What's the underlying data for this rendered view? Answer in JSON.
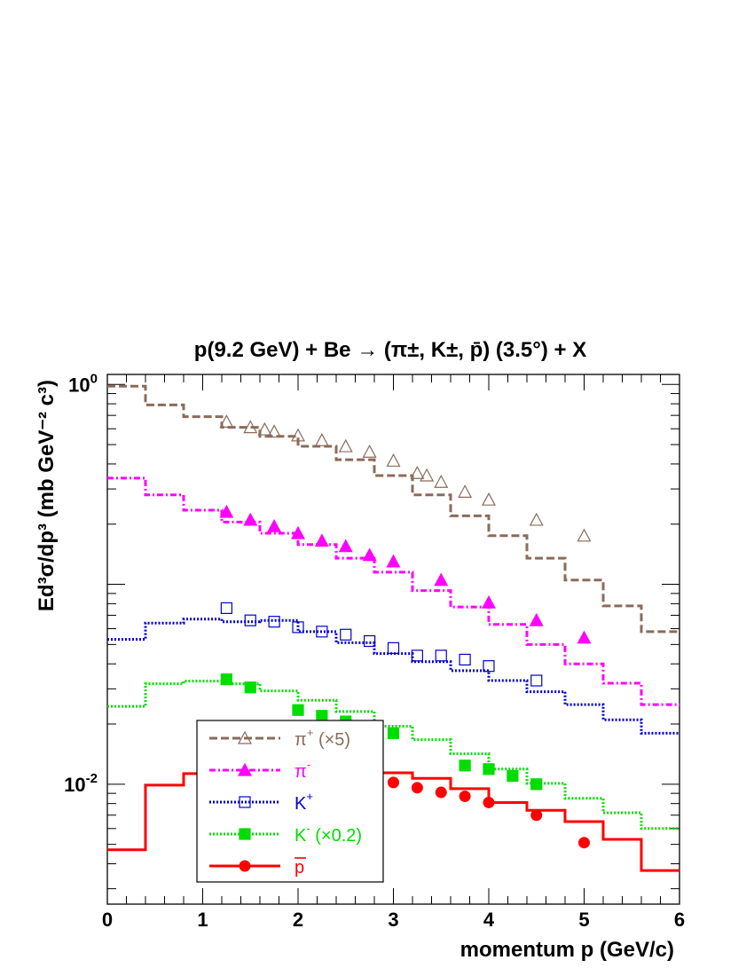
{
  "chart_data": {
    "type": "scatter",
    "title": "p(9.2 GeV) + Be  → (π±, K±, p̄) (3.5°) + X",
    "xlabel": "momentum p (GeV/c)",
    "ylabel": "Ed³σ/dp³ (mb GeV⁻² c³)",
    "xlim": [
      0,
      6
    ],
    "ylim_log10": [
      -2.6,
      0.05
    ],
    "y_scale": "log",
    "x_ticks": [
      "0",
      "1",
      "2",
      "3",
      "4",
      "5",
      "6"
    ],
    "y_tick_labels": [
      {
        "value": 1,
        "base": "10",
        "exp": "0"
      },
      {
        "value": 0.01,
        "base": "10",
        "exp": "-2"
      }
    ],
    "legend_position": "bottom-left",
    "series": [
      {
        "name": "π+ (×5)",
        "legend_base": "π",
        "legend_sup": "+",
        "legend_suffix": " (×5)",
        "color": "#8B6B5A",
        "marker": "open-triangle",
        "line": "dashed",
        "hist_edges": [
          0,
          0.4,
          0.8,
          1.2,
          1.6,
          2.0,
          2.4,
          2.8,
          3.2,
          3.6,
          4.0,
          4.4,
          4.8,
          5.2,
          5.6,
          6.0
        ],
        "hist_values": [
          0.98,
          0.79,
          0.69,
          0.61,
          0.55,
          0.49,
          0.42,
          0.35,
          0.28,
          0.22,
          0.175,
          0.135,
          0.105,
          0.078,
          0.058
        ],
        "points_x": [
          1.25,
          1.5,
          1.65,
          1.75,
          2.0,
          2.25,
          2.5,
          2.75,
          3.0,
          3.25,
          3.35,
          3.5,
          3.75,
          4.0,
          4.5,
          5.0
        ],
        "points_y": [
          0.65,
          0.61,
          0.595,
          0.58,
          0.555,
          0.525,
          0.49,
          0.46,
          0.415,
          0.36,
          0.35,
          0.325,
          0.29,
          0.265,
          0.21,
          0.175
        ]
      },
      {
        "name": "π-",
        "legend_base": "π",
        "legend_sup": "-",
        "legend_suffix": "",
        "color": "#FF00FF",
        "marker": "filled-triangle",
        "line": "dashdot",
        "hist_edges": [
          0,
          0.4,
          0.8,
          1.2,
          1.6,
          2.0,
          2.4,
          2.8,
          3.2,
          3.6,
          4.0,
          4.4,
          4.8,
          5.2,
          5.6,
          6.0
        ],
        "hist_values": [
          0.34,
          0.28,
          0.235,
          0.205,
          0.18,
          0.158,
          0.135,
          0.115,
          0.093,
          0.077,
          0.063,
          0.05,
          0.04,
          0.032,
          0.025
        ],
        "points_x": [
          1.25,
          1.5,
          1.75,
          2.0,
          2.25,
          2.5,
          2.75,
          3.0,
          3.5,
          4.0,
          4.5,
          5.0
        ],
        "points_y": [
          0.23,
          0.21,
          0.195,
          0.18,
          0.165,
          0.155,
          0.14,
          0.13,
          0.105,
          0.081,
          0.066,
          0.054
        ]
      },
      {
        "name": "K+",
        "legend_base": "K",
        "legend_sup": "+",
        "legend_suffix": "",
        "color": "#0000CC",
        "marker": "open-square",
        "line": "dotted",
        "hist_edges": [
          0,
          0.4,
          0.8,
          1.2,
          1.6,
          2.0,
          2.4,
          2.8,
          3.2,
          3.6,
          4.0,
          4.4,
          4.8,
          5.2,
          5.6,
          6.0
        ],
        "hist_values": [
          0.053,
          0.064,
          0.067,
          0.065,
          0.066,
          0.058,
          0.051,
          0.045,
          0.041,
          0.037,
          0.033,
          0.029,
          0.025,
          0.021,
          0.018
        ],
        "points_x": [
          1.25,
          1.5,
          1.75,
          2.0,
          2.25,
          2.5,
          2.75,
          3.0,
          3.25,
          3.5,
          3.75,
          4.0,
          4.5
        ],
        "points_y": [
          0.076,
          0.066,
          0.065,
          0.061,
          0.058,
          0.056,
          0.052,
          0.048,
          0.044,
          0.044,
          0.042,
          0.039,
          0.033
        ]
      },
      {
        "name": "K- (×0.2)",
        "legend_base": "K",
        "legend_sup": "-",
        "legend_suffix": " (×0.2)",
        "color": "#00DD00",
        "marker": "filled-square",
        "line": "dotted",
        "hist_edges": [
          0,
          0.4,
          0.8,
          1.2,
          1.6,
          2.0,
          2.4,
          2.8,
          3.2,
          3.6,
          4.0,
          4.4,
          4.8,
          5.2,
          5.6,
          6.0
        ],
        "hist_values": [
          0.0245,
          0.0318,
          0.0328,
          0.0318,
          0.0293,
          0.0263,
          0.0231,
          0.0195,
          0.0167,
          0.0142,
          0.0119,
          0.0101,
          0.0085,
          0.0072,
          0.006
        ],
        "points_x": [
          1.25,
          1.5,
          2.0,
          2.25,
          2.5,
          2.75,
          3.0,
          3.75,
          4.0,
          4.25,
          4.5
        ],
        "points_y": [
          0.0335,
          0.0305,
          0.0235,
          0.022,
          0.0206,
          0.0192,
          0.018,
          0.0124,
          0.0119,
          0.011,
          0.01
        ]
      },
      {
        "name": "p̄",
        "legend_base": "p",
        "legend_sup": "",
        "legend_suffix": "",
        "legend_bar": true,
        "color": "#FF0000",
        "marker": "filled-circle",
        "line": "solid",
        "hist_edges": [
          0,
          0.4,
          0.8,
          1.2,
          1.6,
          2.0,
          2.4,
          2.8,
          3.2,
          3.6,
          4.0,
          4.4,
          4.8,
          5.2,
          5.6,
          6.0
        ],
        "hist_values": [
          0.0047,
          0.0099,
          0.0113,
          0.0125,
          0.0131,
          0.0127,
          0.0125,
          0.0114,
          0.0107,
          0.0095,
          0.0081,
          0.0074,
          0.0065,
          0.0053,
          0.0037
        ],
        "points_x": [
          1.25,
          1.5,
          1.75,
          2.0,
          2.25,
          2.5,
          2.75,
          3.0,
          3.25,
          3.5,
          3.75,
          4.0,
          4.5,
          5.0
        ],
        "points_y": [
          0.0114,
          0.0118,
          0.0122,
          0.0118,
          0.0114,
          0.011,
          0.0106,
          0.0102,
          0.0096,
          0.0091,
          0.0087,
          0.0081,
          0.007,
          0.0051
        ]
      }
    ]
  }
}
